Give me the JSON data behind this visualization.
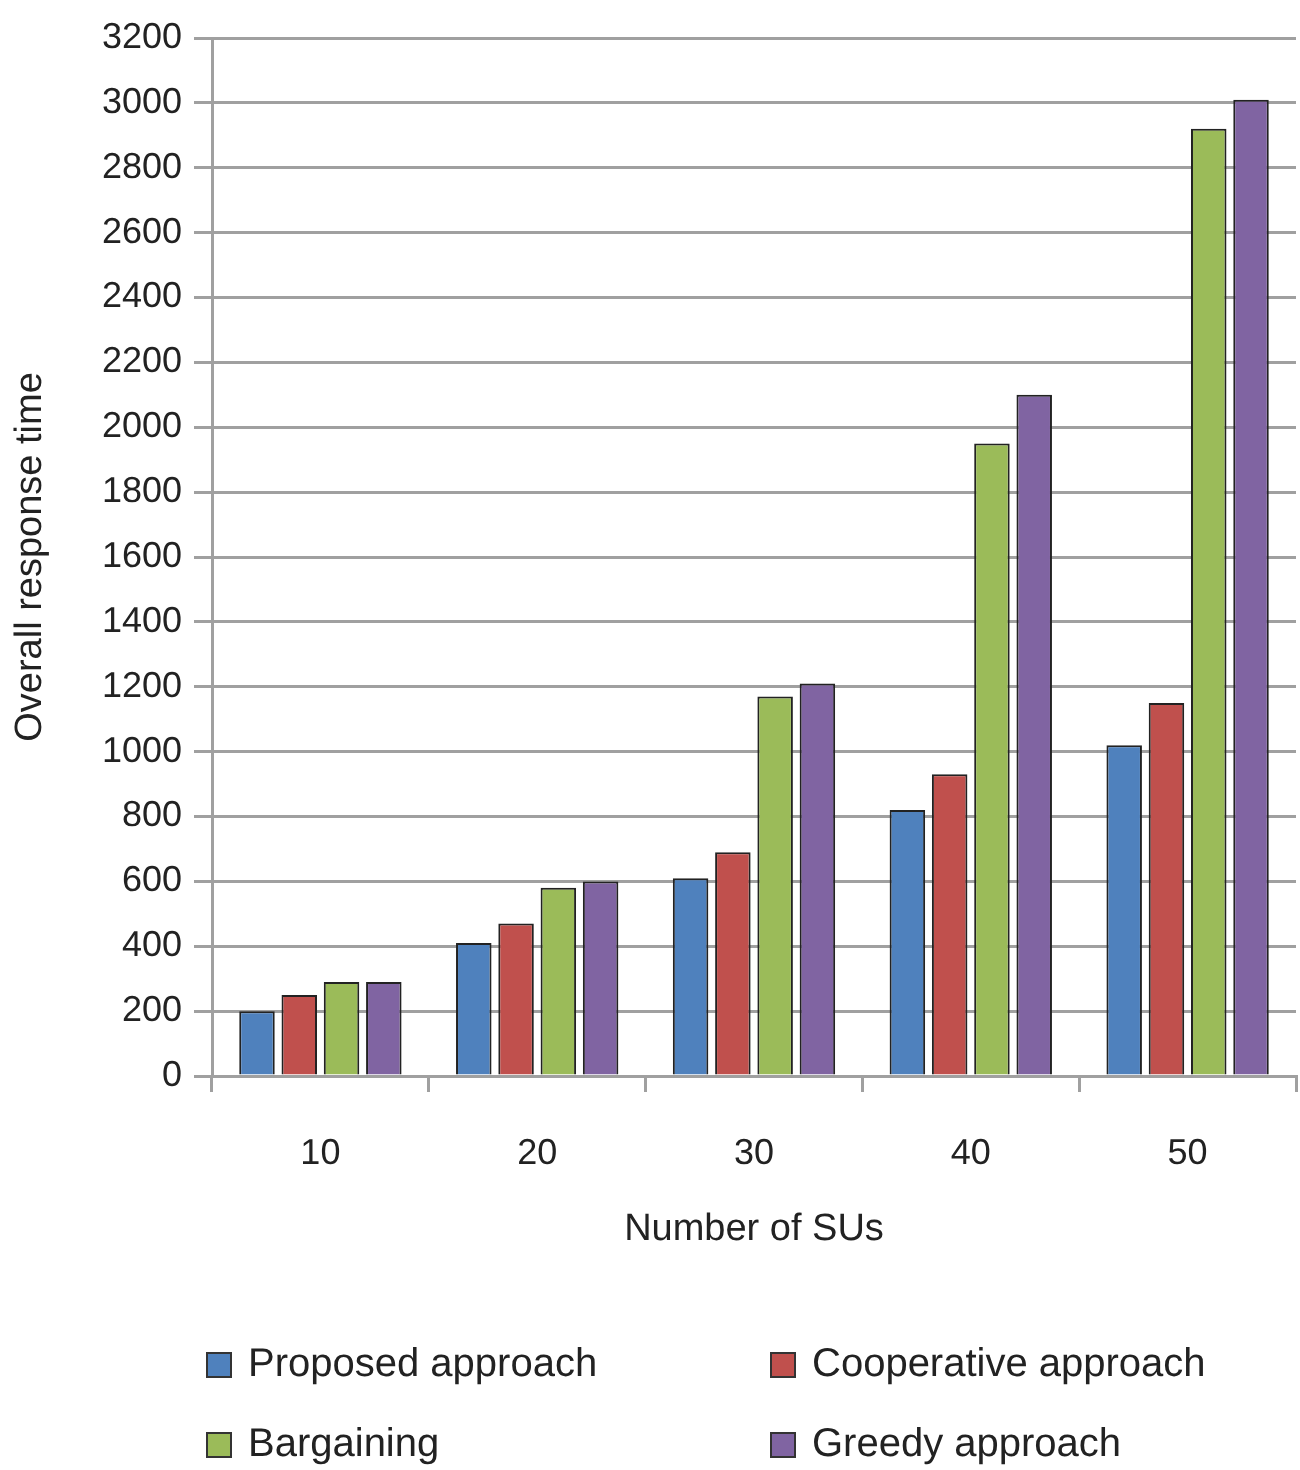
{
  "chart_data": {
    "type": "bar",
    "xlabel": "Number of SUs",
    "ylabel": "Overall response time",
    "categories": [
      "10",
      "20",
      "30",
      "40",
      "50"
    ],
    "series": [
      {
        "name": "Proposed approach",
        "color": "#4f81bd",
        "values": [
          200,
          410,
          610,
          820,
          1020
        ]
      },
      {
        "name": "Cooperative approach",
        "color": "#c0504d",
        "values": [
          250,
          470,
          690,
          930,
          1150
        ]
      },
      {
        "name": "Bargaining",
        "color": "#9bbb59",
        "values": [
          290,
          580,
          1170,
          1950,
          2920
        ]
      },
      {
        "name": "Greedy approach",
        "color": "#8064a2",
        "values": [
          290,
          600,
          1210,
          2100,
          3010
        ]
      }
    ],
    "ylim": [
      0,
      3200
    ],
    "yticks": [
      0,
      200,
      400,
      600,
      800,
      1000,
      1200,
      1400,
      1600,
      1800,
      2000,
      2200,
      2400,
      2600,
      2800,
      3000,
      3200
    ],
    "grid": "y",
    "legend": "bottom"
  }
}
